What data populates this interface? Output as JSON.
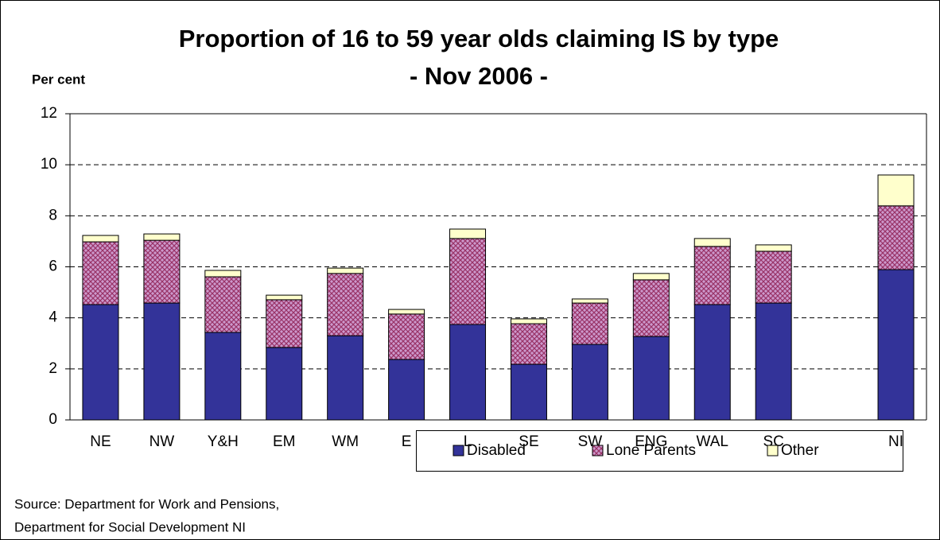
{
  "chart_data": {
    "type": "stacked-bar",
    "title": [
      "Proportion of 16 to 59 year olds claiming IS by type",
      "- Nov 2006 -"
    ],
    "y_label": "Per cent",
    "source": [
      "Source: Department for Work and Pensions,",
      "Department for Social Development NI"
    ],
    "categories": [
      "NE",
      "NW",
      "Y&H",
      "EM",
      "WM",
      "E",
      "L",
      "SE",
      "SW",
      "ENG",
      "WAL",
      "SC",
      null,
      "NI"
    ],
    "series": [
      {
        "name": "Disabled",
        "color": "#333399",
        "values": [
          4.52,
          4.58,
          3.43,
          2.84,
          3.3,
          2.37,
          3.74,
          2.18,
          2.96,
          3.27,
          4.52,
          4.58,
          null,
          5.89
        ]
      },
      {
        "name": "Lone Parents",
        "color": "#cc99cc",
        "values": [
          2.46,
          2.46,
          2.18,
          1.87,
          2.44,
          1.78,
          3.37,
          1.59,
          1.62,
          2.22,
          2.28,
          2.03,
          null,
          2.5
        ]
      },
      {
        "name": "Other",
        "color": "#ffffcc",
        "values": [
          0.25,
          0.25,
          0.25,
          0.18,
          0.21,
          0.18,
          0.37,
          0.19,
          0.16,
          0.25,
          0.31,
          0.25,
          null,
          1.21
        ]
      }
    ],
    "ylim": [
      0,
      12
    ],
    "yticks": [
      0,
      2,
      4,
      6,
      8,
      10,
      12
    ],
    "grid": true,
    "legend": "bottom"
  }
}
